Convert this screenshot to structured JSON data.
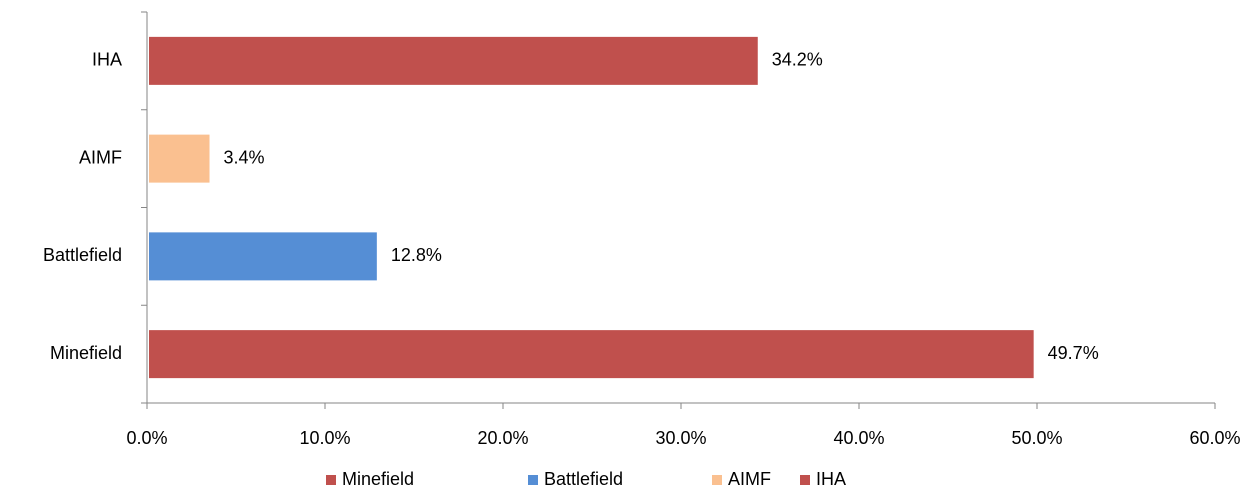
{
  "chart_data": {
    "type": "bar",
    "orientation": "horizontal",
    "categories": [
      "Minefield",
      "Battlefield",
      "AIMF",
      "IHA"
    ],
    "values": [
      49.7,
      12.8,
      3.4,
      34.2
    ],
    "value_labels": [
      "49.7%",
      "12.8%",
      "3.4%",
      "34.2%"
    ],
    "colors": [
      "#c0504d",
      "#558ed5",
      "#fac090",
      "#c0504d"
    ],
    "xlim": [
      0,
      60
    ],
    "xticks": [
      {
        "value": 0,
        "label": "0.0%"
      },
      {
        "value": 10,
        "label": "10.0%"
      },
      {
        "value": 20,
        "label": "20.0%"
      },
      {
        "value": 30,
        "label": "30.0%"
      },
      {
        "value": 40,
        "label": "40.0%"
      },
      {
        "value": 50,
        "label": "50.0%"
      },
      {
        "value": 60,
        "label": "60.0%"
      }
    ],
    "legend": "bottom"
  }
}
